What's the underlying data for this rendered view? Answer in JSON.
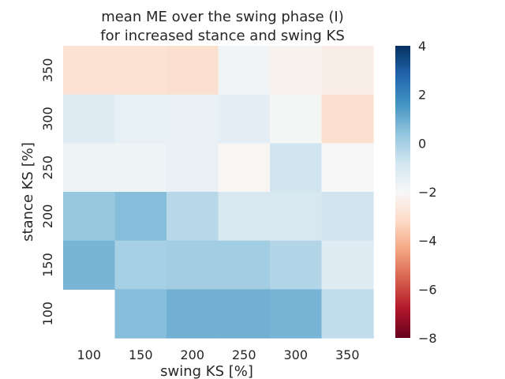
{
  "chart_data": {
    "type": "heatmap",
    "title": "mean ME over the swing phase (I)",
    "subtitle": "for increased stance and swing KS",
    "xlabel": "swing KS [%]",
    "ylabel": "stance KS [%]",
    "x_categories": [
      "100",
      "150",
      "200",
      "250",
      "300",
      "350"
    ],
    "y_categories": [
      "350",
      "300",
      "250",
      "200",
      "150",
      "100"
    ],
    "values": [
      [
        -2.9,
        -2.9,
        -3.0,
        -1.8,
        -2.2,
        -2.4
      ],
      [
        -1.2,
        -1.5,
        -1.6,
        -1.4,
        -1.9,
        -3.0
      ],
      [
        -1.7,
        -1.7,
        -1.6,
        -2.1,
        -0.8,
        -2.0
      ],
      [
        0.3,
        0.6,
        -0.3,
        -1.0,
        -1.0,
        -0.8
      ],
      [
        0.8,
        0.0,
        0.1,
        0.1,
        -0.2,
        -1.2
      ],
      [
        null,
        0.6,
        0.9,
        0.9,
        0.8,
        -0.5
      ]
    ],
    "colorbar": {
      "min": -8,
      "max": 4,
      "ticks": [
        "4",
        "2",
        "0",
        "−2",
        "−4",
        "−6",
        "−8"
      ]
    },
    "colormap": {
      "name": "RdBu",
      "stops": [
        "#67001f",
        "#b2182b",
        "#d6604d",
        "#f4a582",
        "#fddbc7",
        "#f7f7f7",
        "#d1e5f0",
        "#92c5de",
        "#4393c3",
        "#2166ac",
        "#053061"
      ]
    }
  }
}
